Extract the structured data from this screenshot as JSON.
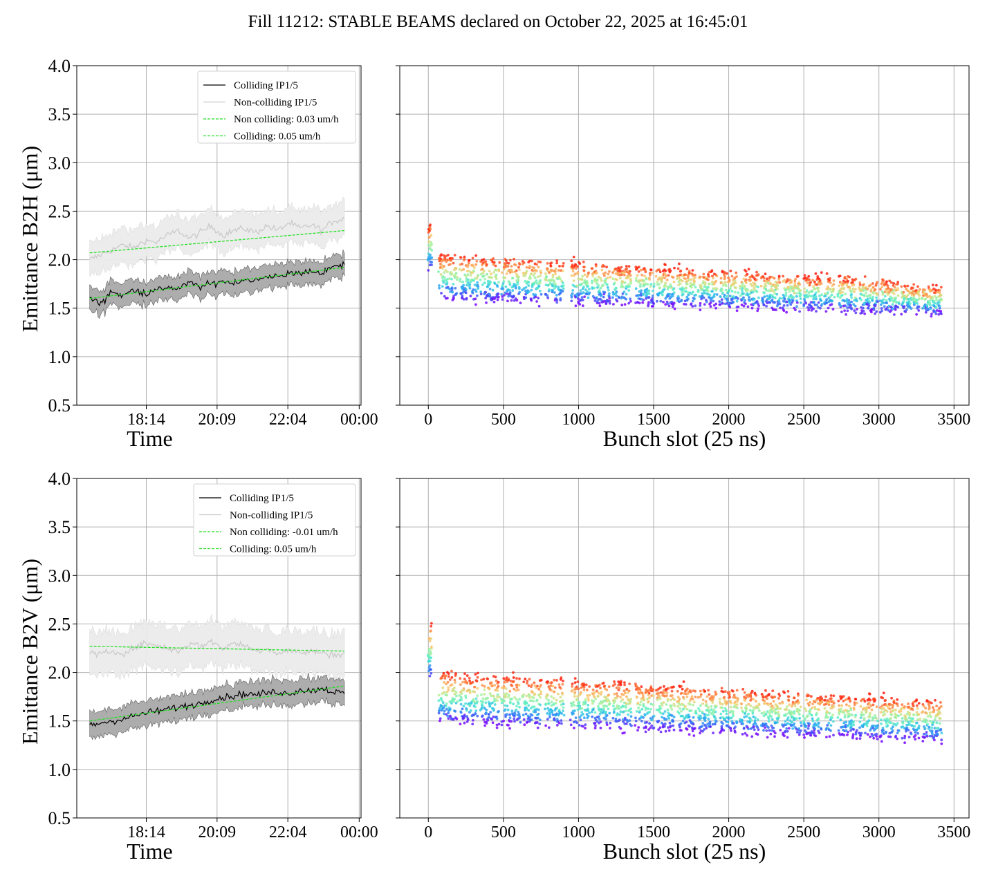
{
  "title": "Fill 11212: STABLE BEAMS declared on October 22, 2025 at 16:45:01",
  "colors": {
    "colliding": "#000000",
    "non_colliding": "#c8c8c8",
    "colliding_band": "#a9a9a9",
    "non_colliding_band": "#ececec",
    "fit": "#22e022",
    "grid": "#b0b0b0"
  },
  "chart_data": [
    {
      "type": "line",
      "panel": "top-left",
      "ylabel": "Emittance B2H (μm)",
      "xlabel": "Time",
      "x_tick_labels": [
        "18:14",
        "20:09",
        "22:04",
        "00:00"
      ],
      "x_tick_hours": [
        18.233,
        20.15,
        22.067,
        24.0
      ],
      "xlim_hours": [
        16.35,
        24.05
      ],
      "ylim": [
        0.5,
        4.0
      ],
      "y_ticks": [
        "0.5",
        "1.0",
        "1.5",
        "2.0",
        "2.5",
        "3.0",
        "3.5",
        "4.0"
      ],
      "grid": true,
      "legend_position": "upper-right",
      "legend": [
        "Colliding IP1/5",
        "Non-colliding IP1/5",
        "Non colliding: 0.03 um/h",
        "Colliding: 0.05 um/h"
      ],
      "series": [
        {
          "name": "Colliding IP1/5",
          "x_hours": [
            16.7,
            17.0,
            17.3,
            17.6,
            17.9,
            18.2,
            18.5,
            18.8,
            19.1,
            19.4,
            19.7,
            20.0,
            20.3,
            20.6,
            20.9,
            21.2,
            21.5,
            21.8,
            22.1,
            22.4,
            22.7,
            23.0,
            23.3,
            23.6
          ],
          "values": [
            1.6,
            1.55,
            1.68,
            1.62,
            1.7,
            1.65,
            1.68,
            1.72,
            1.7,
            1.76,
            1.72,
            1.75,
            1.78,
            1.76,
            1.8,
            1.78,
            1.82,
            1.84,
            1.85,
            1.86,
            1.88,
            1.87,
            1.92,
            1.95
          ],
          "band": 0.12
        },
        {
          "name": "Non-colliding IP1/5",
          "x_hours": [
            16.7,
            17.0,
            17.3,
            17.6,
            17.9,
            18.2,
            18.5,
            18.8,
            19.1,
            19.4,
            19.7,
            20.0,
            20.3,
            20.6,
            20.9,
            21.2,
            21.5,
            21.8,
            22.1,
            22.4,
            22.7,
            23.0,
            23.3,
            23.6
          ],
          "values": [
            2.0,
            2.05,
            2.1,
            2.15,
            2.12,
            2.2,
            2.18,
            2.25,
            2.3,
            2.22,
            2.28,
            2.35,
            2.25,
            2.3,
            2.32,
            2.28,
            2.35,
            2.3,
            2.38,
            2.32,
            2.36,
            2.3,
            2.4,
            2.42
          ],
          "band": 0.18
        },
        {
          "name": "Non colliding: 0.03 um/h",
          "x_hours": [
            16.7,
            23.6
          ],
          "values": [
            2.07,
            2.3
          ]
        },
        {
          "name": "Colliding: 0.05 um/h",
          "x_hours": [
            16.7,
            23.6
          ],
          "values": [
            1.6,
            1.92
          ]
        }
      ]
    },
    {
      "type": "scatter",
      "panel": "top-right",
      "xlabel": "Bunch slot (25 ns)",
      "xlim": [
        -190,
        3600
      ],
      "x_ticks": [
        0,
        500,
        1000,
        1500,
        2000,
        2500,
        3000,
        3500
      ],
      "ylim": [
        0.5,
        4.0
      ],
      "grid": true,
      "colormap": "rainbow",
      "trains": [
        [
          0,
          20
        ],
        [
          70,
          190
        ],
        [
          210,
          330
        ],
        [
          350,
          470
        ],
        [
          490,
          610
        ],
        [
          630,
          750
        ],
        [
          780,
          900
        ],
        [
          950,
          1070
        ],
        [
          1090,
          1210
        ],
        [
          1230,
          1350
        ],
        [
          1380,
          1500
        ],
        [
          1520,
          1640
        ],
        [
          1660,
          1780
        ],
        [
          1800,
          1920
        ],
        [
          1940,
          2060
        ],
        [
          2080,
          2200
        ],
        [
          2220,
          2340
        ],
        [
          2360,
          2480
        ],
        [
          2500,
          2620
        ],
        [
          2640,
          2700
        ],
        [
          2730,
          2850
        ],
        [
          2870,
          2990
        ],
        [
          3010,
          3130
        ],
        [
          3150,
          3270
        ],
        [
          3290,
          3420
        ]
      ],
      "band_start": [
        2.35,
        1.6
      ],
      "band_end": [
        1.7,
        1.45
      ],
      "note_values": "Per-bunch emittance; colored points span the band (low = violet, high = red)."
    },
    {
      "type": "line",
      "panel": "bottom-left",
      "ylabel": "Emittance B2V (μm)",
      "xlabel": "Time",
      "x_tick_labels": [
        "18:14",
        "20:09",
        "22:04",
        "00:00"
      ],
      "x_tick_hours": [
        18.233,
        20.15,
        22.067,
        24.0
      ],
      "xlim_hours": [
        16.35,
        24.05
      ],
      "ylim": [
        0.5,
        4.0
      ],
      "y_ticks": [
        "0.5",
        "1.0",
        "1.5",
        "2.0",
        "2.5",
        "3.0",
        "3.5",
        "4.0"
      ],
      "grid": true,
      "legend_position": "upper-right",
      "legend": [
        "Colliding IP1/5",
        "Non-colliding IP1/5",
        "Non colliding: -0.01 um/h",
        "Colliding: 0.05 um/h"
      ],
      "series": [
        {
          "name": "Colliding IP1/5",
          "x_hours": [
            16.7,
            17.0,
            17.3,
            17.6,
            17.9,
            18.2,
            18.5,
            18.8,
            19.1,
            19.4,
            19.7,
            20.0,
            20.3,
            20.6,
            20.9,
            21.2,
            21.5,
            21.8,
            22.1,
            22.4,
            22.7,
            23.0,
            23.3,
            23.6
          ],
          "values": [
            1.45,
            1.48,
            1.5,
            1.52,
            1.55,
            1.58,
            1.6,
            1.62,
            1.64,
            1.66,
            1.68,
            1.72,
            1.74,
            1.76,
            1.78,
            1.77,
            1.79,
            1.8,
            1.78,
            1.82,
            1.81,
            1.84,
            1.8,
            1.78
          ],
          "band": 0.13
        },
        {
          "name": "Non-colliding IP1/5",
          "x_hours": [
            16.7,
            17.0,
            17.3,
            17.6,
            17.9,
            18.2,
            18.5,
            18.8,
            19.1,
            19.4,
            19.7,
            20.0,
            20.3,
            20.6,
            20.9,
            21.2,
            21.5,
            21.8,
            22.1,
            22.4,
            22.7,
            23.0,
            23.3,
            23.6
          ],
          "values": [
            2.2,
            2.18,
            2.22,
            2.2,
            2.25,
            2.3,
            2.28,
            2.25,
            2.22,
            2.3,
            2.27,
            2.32,
            2.25,
            2.3,
            2.28,
            2.22,
            2.25,
            2.2,
            2.23,
            2.2,
            2.22,
            2.2,
            2.18,
            2.2
          ],
          "band": 0.22
        },
        {
          "name": "Non colliding: -0.01 um/h",
          "x_hours": [
            16.7,
            23.6
          ],
          "values": [
            2.27,
            2.22
          ]
        },
        {
          "name": "Colliding: 0.05 um/h",
          "x_hours": [
            16.7,
            23.6
          ],
          "values": [
            1.5,
            1.86
          ]
        }
      ]
    },
    {
      "type": "scatter",
      "panel": "bottom-right",
      "xlabel": "Bunch slot (25 ns)",
      "xlim": [
        -190,
        3600
      ],
      "x_ticks": [
        0,
        500,
        1000,
        1500,
        2000,
        2500,
        3000,
        3500
      ],
      "ylim": [
        0.5,
        4.0
      ],
      "grid": true,
      "colormap": "rainbow",
      "trains": [
        [
          0,
          20
        ],
        [
          70,
          190
        ],
        [
          210,
          330
        ],
        [
          350,
          470
        ],
        [
          490,
          610
        ],
        [
          630,
          750
        ],
        [
          780,
          900
        ],
        [
          950,
          1070
        ],
        [
          1090,
          1210
        ],
        [
          1230,
          1350
        ],
        [
          1380,
          1500
        ],
        [
          1520,
          1640
        ],
        [
          1660,
          1780
        ],
        [
          1800,
          1920
        ],
        [
          1940,
          2060
        ],
        [
          2080,
          2200
        ],
        [
          2220,
          2340
        ],
        [
          2360,
          2480
        ],
        [
          2500,
          2620
        ],
        [
          2640,
          2700
        ],
        [
          2730,
          2850
        ],
        [
          2870,
          2990
        ],
        [
          3010,
          3130
        ],
        [
          3150,
          3270
        ],
        [
          3290,
          3420
        ]
      ],
      "band_start": [
        2.5,
        1.5
      ],
      "band_end": [
        1.7,
        1.3
      ],
      "note_values": "Per-bunch emittance; colored points span the band (low = violet, high = red)."
    }
  ]
}
